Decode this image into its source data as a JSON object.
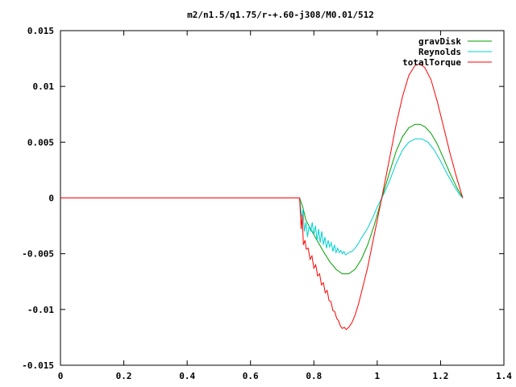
{
  "chart_data": {
    "type": "line",
    "title": "m2/n1.5/q1.75/r-+.60-j308/M0.01/512",
    "xlabel": "",
    "ylabel": "",
    "xlim": [
      0,
      1.4
    ],
    "ylim": [
      -0.015,
      0.015
    ],
    "grid": false,
    "legend_position": "top-right",
    "xticks": [
      0,
      0.2,
      0.4,
      0.6,
      0.8,
      1,
      1.2,
      1.4
    ],
    "xtick_labels": [
      "0",
      "0.2",
      "0.4",
      "0.6",
      "0.8",
      "1",
      "1.2",
      "1.4"
    ],
    "yticks": [
      0.015,
      0.01,
      0.005,
      0,
      -0.005,
      -0.01,
      -0.015
    ],
    "ytick_labels": [
      "0.015",
      "0.01",
      "0.005",
      "0",
      "-0.005",
      "-0.01",
      "-0.015"
    ],
    "series": [
      {
        "name": "gravDisk",
        "color": "#00a000",
        "points": [
          [
            0,
            0
          ],
          [
            0.7,
            0
          ],
          [
            0.755,
            0
          ],
          [
            0.765,
            -0.0008
          ],
          [
            0.775,
            -0.002
          ],
          [
            0.79,
            -0.0028
          ],
          [
            0.81,
            -0.0038
          ],
          [
            0.83,
            -0.0048
          ],
          [
            0.85,
            -0.0057
          ],
          [
            0.87,
            -0.0064
          ],
          [
            0.89,
            -0.0068
          ],
          [
            0.91,
            -0.0068
          ],
          [
            0.93,
            -0.0064
          ],
          [
            0.95,
            -0.0055
          ],
          [
            0.97,
            -0.0042
          ],
          [
            0.99,
            -0.0025
          ],
          [
            1.0,
            -0.0015
          ],
          [
            1.02,
            0.0005
          ],
          [
            1.04,
            0.0024
          ],
          [
            1.06,
            0.0042
          ],
          [
            1.08,
            0.0055
          ],
          [
            1.1,
            0.0063
          ],
          [
            1.12,
            0.0066
          ],
          [
            1.135,
            0.0066
          ],
          [
            1.15,
            0.0064
          ],
          [
            1.17,
            0.0058
          ],
          [
            1.19,
            0.0048
          ],
          [
            1.21,
            0.0035
          ],
          [
            1.23,
            0.0022
          ],
          [
            1.25,
            0.001
          ],
          [
            1.27,
            0.0
          ]
        ]
      },
      {
        "name": "Reynolds",
        "color": "#00d0d0",
        "points": [
          [
            0,
            0
          ],
          [
            0.7,
            0
          ],
          [
            0.755,
            0
          ],
          [
            0.762,
            -0.0018
          ],
          [
            0.766,
            -0.001
          ],
          [
            0.77,
            -0.003
          ],
          [
            0.775,
            -0.0022
          ],
          [
            0.78,
            -0.0035
          ],
          [
            0.785,
            -0.0025
          ],
          [
            0.79,
            -0.003
          ],
          [
            0.795,
            -0.0022
          ],
          [
            0.8,
            -0.0033
          ],
          [
            0.805,
            -0.0025
          ],
          [
            0.81,
            -0.0038
          ],
          [
            0.815,
            -0.0028
          ],
          [
            0.82,
            -0.004
          ],
          [
            0.825,
            -0.003
          ],
          [
            0.83,
            -0.0042
          ],
          [
            0.835,
            -0.0035
          ],
          [
            0.84,
            -0.0045
          ],
          [
            0.845,
            -0.0038
          ],
          [
            0.85,
            -0.0044
          ],
          [
            0.855,
            -0.004
          ],
          [
            0.86,
            -0.0048
          ],
          [
            0.865,
            -0.0042
          ],
          [
            0.87,
            -0.0049
          ],
          [
            0.875,
            -0.0045
          ],
          [
            0.88,
            -0.0049
          ],
          [
            0.885,
            -0.0047
          ],
          [
            0.89,
            -0.005
          ],
          [
            0.895,
            -0.0048
          ],
          [
            0.9,
            -0.0051
          ],
          [
            0.91,
            -0.0049
          ],
          [
            0.92,
            -0.0048
          ],
          [
            0.93,
            -0.0045
          ],
          [
            0.94,
            -0.0041
          ],
          [
            0.95,
            -0.0036
          ],
          [
            0.97,
            -0.0027
          ],
          [
            0.99,
            -0.0015
          ],
          [
            1.0,
            -0.0008
          ],
          [
            1.02,
            0.0003
          ],
          [
            1.04,
            0.0016
          ],
          [
            1.06,
            0.0031
          ],
          [
            1.08,
            0.0043
          ],
          [
            1.1,
            0.005
          ],
          [
            1.12,
            0.0053
          ],
          [
            1.14,
            0.0053
          ],
          [
            1.16,
            0.005
          ],
          [
            1.18,
            0.0043
          ],
          [
            1.2,
            0.0033
          ],
          [
            1.22,
            0.0022
          ],
          [
            1.24,
            0.0012
          ],
          [
            1.26,
            0.0003
          ],
          [
            1.27,
            0.0
          ]
        ]
      },
      {
        "name": "totalTorque",
        "color": "#ff0000",
        "points": [
          [
            0,
            0
          ],
          [
            0.7,
            0
          ],
          [
            0.755,
            0
          ],
          [
            0.76,
            -0.0028
          ],
          [
            0.763,
            -0.0015
          ],
          [
            0.767,
            -0.0042
          ],
          [
            0.772,
            -0.0038
          ],
          [
            0.776,
            -0.0046
          ],
          [
            0.782,
            -0.0045
          ],
          [
            0.788,
            -0.0055
          ],
          [
            0.794,
            -0.0052
          ],
          [
            0.8,
            -0.0063
          ],
          [
            0.806,
            -0.006
          ],
          [
            0.812,
            -0.007
          ],
          [
            0.818,
            -0.0068
          ],
          [
            0.824,
            -0.0078
          ],
          [
            0.83,
            -0.0076
          ],
          [
            0.836,
            -0.0085
          ],
          [
            0.842,
            -0.0083
          ],
          [
            0.848,
            -0.0092
          ],
          [
            0.854,
            -0.0093
          ],
          [
            0.86,
            -0.0101
          ],
          [
            0.866,
            -0.0102
          ],
          [
            0.872,
            -0.0108
          ],
          [
            0.878,
            -0.011
          ],
          [
            0.884,
            -0.0115
          ],
          [
            0.89,
            -0.0117
          ],
          [
            0.896,
            -0.0116
          ],
          [
            0.902,
            -0.0118
          ],
          [
            0.91,
            -0.0116
          ],
          [
            0.92,
            -0.0112
          ],
          [
            0.93,
            -0.0105
          ],
          [
            0.94,
            -0.0096
          ],
          [
            0.95,
            -0.0085
          ],
          [
            0.97,
            -0.0062
          ],
          [
            0.99,
            -0.0034
          ],
          [
            1.0,
            -0.002
          ],
          [
            1.02,
            0.0008
          ],
          [
            1.04,
            0.0037
          ],
          [
            1.06,
            0.0066
          ],
          [
            1.08,
            0.0091
          ],
          [
            1.1,
            0.011
          ],
          [
            1.12,
            0.0119
          ],
          [
            1.135,
            0.012
          ],
          [
            1.15,
            0.0117
          ],
          [
            1.17,
            0.0106
          ],
          [
            1.19,
            0.0086
          ],
          [
            1.21,
            0.0063
          ],
          [
            1.23,
            0.004
          ],
          [
            1.25,
            0.0019
          ],
          [
            1.27,
            0.0
          ]
        ]
      }
    ]
  }
}
